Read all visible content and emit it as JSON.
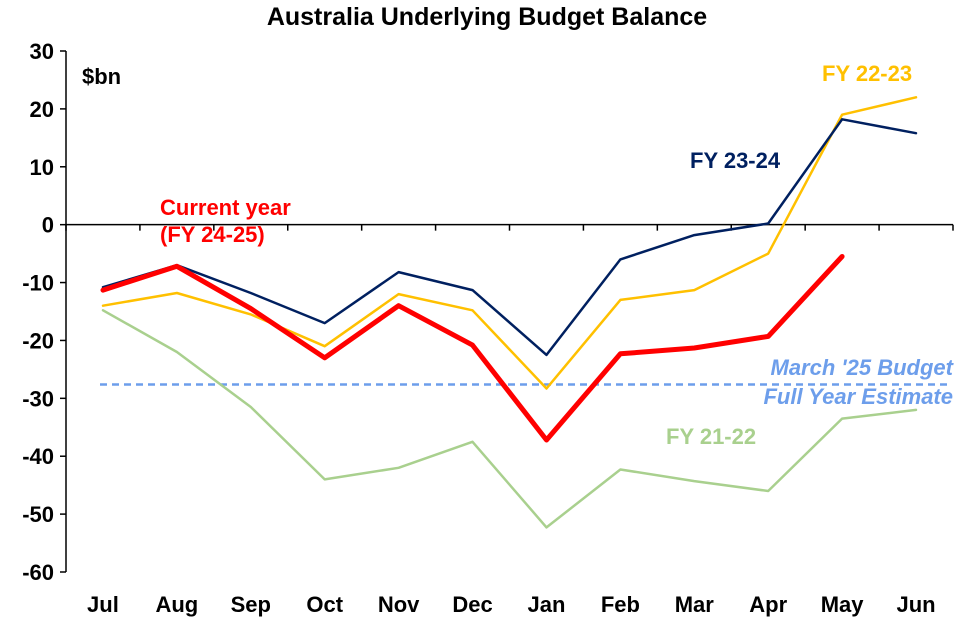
{
  "chart_data": {
    "type": "line",
    "title": "Australia Underlying Budget Balance",
    "unit_label": "$bn",
    "categories": [
      "Jul",
      "Aug",
      "Sep",
      "Oct",
      "Nov",
      "Dec",
      "Jan",
      "Feb",
      "Mar",
      "Apr",
      "May",
      "Jun"
    ],
    "ylim": [
      -60,
      30
    ],
    "yticks": [
      30,
      20,
      10,
      0,
      -10,
      -20,
      -30,
      -40,
      -50,
      -60
    ],
    "grid": false,
    "series": [
      {
        "name": "FY 21-22",
        "color": "#a9d08e",
        "width": 2.5,
        "values": [
          -14.8,
          -22,
          -31.5,
          -44,
          -42,
          -37.5,
          -52.3,
          -42.3,
          -44.3,
          -46,
          -33.5,
          -32
        ]
      },
      {
        "name": "FY 22-23",
        "color": "#ffc000",
        "width": 2.5,
        "values": [
          -14,
          -11.8,
          -15.5,
          -21,
          -12,
          -14.8,
          -28.3,
          -13,
          -11.3,
          -5,
          19,
          22
        ]
      },
      {
        "name": "FY 23-24",
        "color": "#002060",
        "width": 2.5,
        "values": [
          -10.8,
          -7,
          -11.8,
          -17,
          -8.2,
          -11.3,
          -22.5,
          -6,
          -1.8,
          0.2,
          18.2,
          15.8
        ]
      },
      {
        "name": "Current year (FY 24-25)",
        "color": "#ff0000",
        "width": 5,
        "values": [
          -11.3,
          -7.2,
          -14.5,
          -23,
          -14,
          -20.8,
          -37.2,
          -22.3,
          -21.3,
          -19.3,
          -5.5,
          null
        ]
      }
    ],
    "reference_line": {
      "value": -27.6,
      "color": "#6d9eeb",
      "label_lines": [
        "March '25 Budget",
        "Full Year Estimate"
      ]
    },
    "series_labels": [
      {
        "series": "FY 22-23",
        "lines": [
          "FY 22-23"
        ],
        "color": "#ffc000"
      },
      {
        "series": "FY 23-24",
        "lines": [
          "FY 23-24"
        ],
        "color": "#002060"
      },
      {
        "series": "Current year (FY 24-25)",
        "lines": [
          "Current year",
          "(FY 24-25)"
        ],
        "color": "#ff0000"
      },
      {
        "series": "FY 21-22",
        "lines": [
          "FY 21-22"
        ],
        "color": "#a9d08e"
      }
    ]
  }
}
